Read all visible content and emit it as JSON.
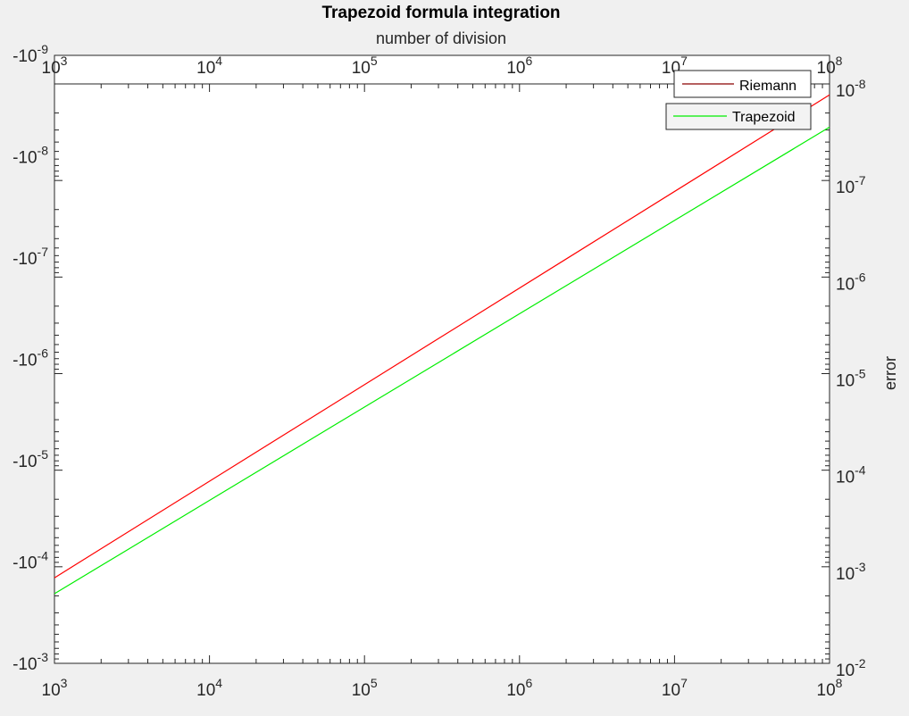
{
  "chart_data": {
    "type": "line",
    "title": "Trapezoid formula integration",
    "xlabel": "number of division",
    "ylabel": "error",
    "x_scale": "log",
    "y_scale": "log",
    "xlim": [
      1000,
      100000000
    ],
    "ylim": [
      1e-08,
      0.01
    ],
    "y_direction": "reverse",
    "grid": false,
    "legend_position": "top-right",
    "x_ticks": [
      {
        "base": "10",
        "exp": "3"
      },
      {
        "base": "10",
        "exp": "4"
      },
      {
        "base": "10",
        "exp": "5"
      },
      {
        "base": "10",
        "exp": "6"
      },
      {
        "base": "10",
        "exp": "7"
      },
      {
        "base": "10",
        "exp": "8"
      }
    ],
    "left_y_ticks": [
      {
        "base": "-10",
        "exp": "-9"
      },
      {
        "base": "-10",
        "exp": "-8"
      },
      {
        "base": "-10",
        "exp": "-7"
      },
      {
        "base": "-10",
        "exp": "-6"
      },
      {
        "base": "-10",
        "exp": "-5"
      },
      {
        "base": "-10",
        "exp": "-4"
      },
      {
        "base": "-10",
        "exp": "-3"
      }
    ],
    "right_y_ticks": [
      {
        "base": "10",
        "exp": "-8"
      },
      {
        "base": "10",
        "exp": "-7"
      },
      {
        "base": "10",
        "exp": "-6"
      },
      {
        "base": "10",
        "exp": "-5"
      },
      {
        "base": "10",
        "exp": "-4"
      },
      {
        "base": "10",
        "exp": "-3"
      },
      {
        "base": "10",
        "exp": "-2"
      }
    ],
    "series": [
      {
        "name": "Riemann",
        "color": "#ff0000",
        "x": [
          1000,
          100000000
        ],
        "y": [
          0.0013,
          1.3e-08
        ]
      },
      {
        "name": "Trapezoid",
        "color": "#00ee00",
        "x": [
          1000,
          100000000
        ],
        "y": [
          0.0019,
          2.8e-08
        ]
      }
    ]
  }
}
